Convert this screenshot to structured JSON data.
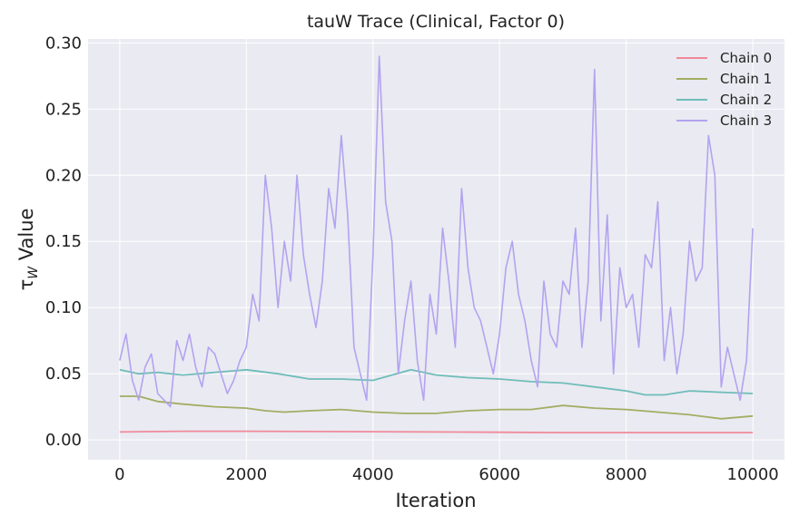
{
  "chart_data": {
    "type": "line",
    "title": "tauW Trace (Clinical, Factor 0)",
    "xlabel": "Iteration",
    "ylabel": "τ_W Value",
    "xlim": [
      -500,
      10500
    ],
    "ylim": [
      -0.015,
      0.303
    ],
    "xticks": [
      "0",
      "2000",
      "4000",
      "6000",
      "8000",
      "10000"
    ],
    "yticks": [
      "0.00",
      "0.05",
      "0.10",
      "0.15",
      "0.20",
      "0.25",
      "0.30"
    ],
    "grid": true,
    "legend_position": "top-right",
    "series": [
      {
        "name": "Chain 0",
        "color": "#f08a9a",
        "x": [
          0,
          1000,
          2000,
          3000,
          4000,
          5000,
          6000,
          7000,
          8000,
          9000,
          10000
        ],
        "y": [
          0.006,
          0.0065,
          0.0065,
          0.0063,
          0.0062,
          0.006,
          0.0058,
          0.0055,
          0.0055,
          0.0055,
          0.0055
        ]
      },
      {
        "name": "Chain 1",
        "color": "#a3ad62",
        "x": [
          0,
          300,
          600,
          1000,
          1500,
          2000,
          2300,
          2600,
          3000,
          3500,
          4000,
          4500,
          5000,
          5500,
          6000,
          6500,
          7000,
          7500,
          8000,
          8500,
          9000,
          9500,
          10000
        ],
        "y": [
          0.033,
          0.033,
          0.029,
          0.027,
          0.025,
          0.024,
          0.022,
          0.021,
          0.022,
          0.023,
          0.021,
          0.02,
          0.02,
          0.022,
          0.023,
          0.023,
          0.026,
          0.024,
          0.023,
          0.021,
          0.019,
          0.016,
          0.018
        ]
      },
      {
        "name": "Chain 2",
        "color": "#6fbdb9",
        "x": [
          0,
          300,
          600,
          1000,
          1500,
          2000,
          2500,
          3000,
          3500,
          4000,
          4300,
          4600,
          5000,
          5500,
          6000,
          6500,
          7000,
          7500,
          8000,
          8300,
          8600,
          9000,
          9500,
          10000
        ],
        "y": [
          0.053,
          0.05,
          0.051,
          0.049,
          0.051,
          0.053,
          0.05,
          0.046,
          0.046,
          0.045,
          0.049,
          0.053,
          0.049,
          0.047,
          0.046,
          0.044,
          0.043,
          0.04,
          0.037,
          0.034,
          0.034,
          0.037,
          0.036,
          0.035
        ]
      },
      {
        "name": "Chain 3",
        "color": "#b3a3f0",
        "x": [
          0,
          100,
          200,
          300,
          400,
          500,
          600,
          700,
          800,
          900,
          1000,
          1100,
          1200,
          1300,
          1400,
          1500,
          1600,
          1700,
          1800,
          1900,
          2000,
          2100,
          2200,
          2300,
          2400,
          2500,
          2600,
          2700,
          2800,
          2900,
          3000,
          3100,
          3200,
          3300,
          3400,
          3500,
          3600,
          3700,
          3800,
          3900,
          4000,
          4100,
          4200,
          4300,
          4400,
          4500,
          4600,
          4700,
          4800,
          4900,
          5000,
          5100,
          5200,
          5300,
          5400,
          5500,
          5600,
          5700,
          5800,
          5900,
          6000,
          6100,
          6200,
          6300,
          6400,
          6500,
          6600,
          6700,
          6800,
          6900,
          7000,
          7100,
          7200,
          7300,
          7400,
          7500,
          7600,
          7700,
          7800,
          7900,
          8000,
          8100,
          8200,
          8300,
          8400,
          8500,
          8600,
          8700,
          8800,
          8900,
          9000,
          9100,
          9200,
          9300,
          9400,
          9500,
          9600,
          9700,
          9800,
          9900,
          10000
        ],
        "y": [
          0.06,
          0.08,
          0.045,
          0.03,
          0.055,
          0.065,
          0.035,
          0.03,
          0.025,
          0.075,
          0.06,
          0.08,
          0.055,
          0.04,
          0.07,
          0.065,
          0.05,
          0.035,
          0.045,
          0.06,
          0.07,
          0.11,
          0.09,
          0.2,
          0.16,
          0.1,
          0.15,
          0.12,
          0.2,
          0.14,
          0.11,
          0.085,
          0.12,
          0.19,
          0.16,
          0.23,
          0.17,
          0.07,
          0.05,
          0.03,
          0.14,
          0.29,
          0.18,
          0.15,
          0.05,
          0.09,
          0.12,
          0.06,
          0.03,
          0.11,
          0.08,
          0.16,
          0.12,
          0.07,
          0.19,
          0.13,
          0.1,
          0.09,
          0.07,
          0.05,
          0.08,
          0.13,
          0.15,
          0.11,
          0.09,
          0.06,
          0.04,
          0.12,
          0.08,
          0.07,
          0.12,
          0.11,
          0.16,
          0.07,
          0.12,
          0.28,
          0.09,
          0.17,
          0.05,
          0.13,
          0.1,
          0.11,
          0.07,
          0.14,
          0.13,
          0.18,
          0.06,
          0.1,
          0.05,
          0.08,
          0.15,
          0.12,
          0.13,
          0.23,
          0.2,
          0.04,
          0.07,
          0.05,
          0.03,
          0.06,
          0.16
        ]
      }
    ]
  }
}
